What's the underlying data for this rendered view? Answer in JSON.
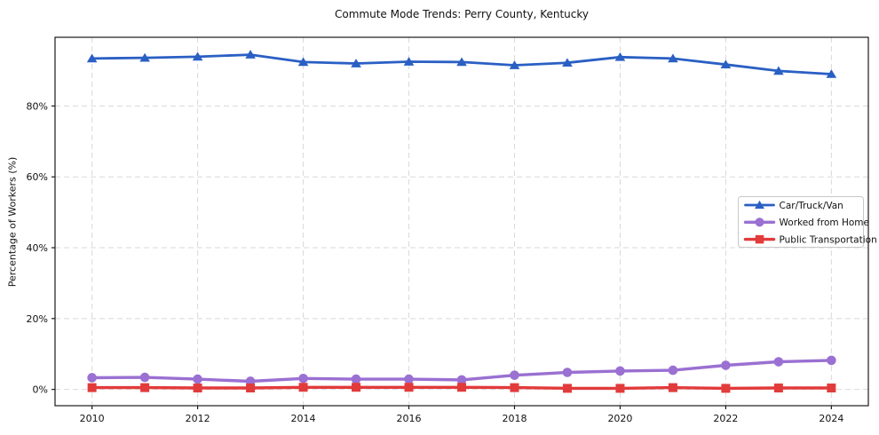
{
  "chart_data": {
    "type": "line",
    "title": "Commute Mode Trends: Perry County, Kentucky",
    "xlabel": "",
    "ylabel": "Percentage of Workers (%)",
    "x": [
      2010,
      2011,
      2012,
      2013,
      2014,
      2015,
      2016,
      2017,
      2018,
      2019,
      2020,
      2021,
      2022,
      2023,
      2024
    ],
    "series": [
      {
        "name": "Car/Truck/Van",
        "color": "#2a5fc4",
        "marker": "triangle",
        "line_width": 2.8,
        "values": [
          93.4,
          93.6,
          93.9,
          94.5,
          92.4,
          92.0,
          92.5,
          92.4,
          91.5,
          92.2,
          93.8,
          93.4,
          91.7,
          89.9,
          89.0
        ]
      },
      {
        "name": "Worked from Home",
        "color": "#9a70d2",
        "marker": "circle",
        "line_width": 3.4,
        "values": [
          3.3,
          3.4,
          2.9,
          2.3,
          3.1,
          2.9,
          2.9,
          2.7,
          4.0,
          4.8,
          5.2,
          5.4,
          6.8,
          7.8,
          8.2
        ]
      },
      {
        "name": "Public Transportation",
        "color": "#e23b3b",
        "marker": "square",
        "line_width": 3.4,
        "values": [
          0.5,
          0.5,
          0.4,
          0.4,
          0.6,
          0.6,
          0.6,
          0.6,
          0.5,
          0.3,
          0.3,
          0.5,
          0.3,
          0.4,
          0.4
        ]
      }
    ],
    "xticks": [
      2010,
      2012,
      2014,
      2016,
      2018,
      2020,
      2022,
      2024
    ],
    "yticks": [
      0,
      20,
      40,
      60,
      80
    ],
    "ytick_suffix": "%",
    "xlim": [
      2009.3,
      2024.7
    ],
    "ylim": [
      -4.6,
      99.4
    ],
    "grid": true,
    "grid_color": "#d9d9d9",
    "axis_color": "#1a1a1a",
    "legend_position": "right-middle",
    "legend_labels": [
      "Car/Truck/Van",
      "Worked from Home",
      "Public Transportation"
    ]
  }
}
